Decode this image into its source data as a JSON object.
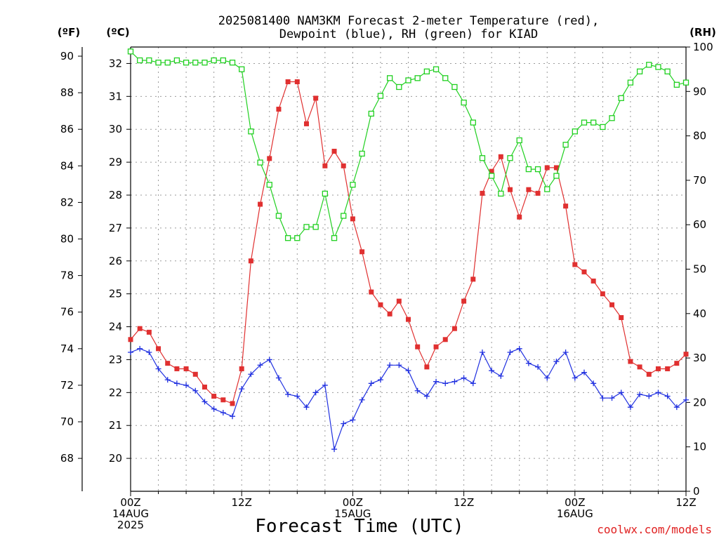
{
  "chart_data": {
    "type": "line",
    "title_lines": [
      "2025081400 NAM3KM Forecast 2-meter Temperature (red),",
      "Dewpoint (blue), RH (green) for KIAD"
    ],
    "xlabel": "Forecast Time (UTC)",
    "credit": "coolwx.com/models",
    "units": {
      "left_f": "(ºF)",
      "left_c": "(ºC)",
      "right": "(RH)"
    },
    "x_ticks": [
      {
        "hour": 0,
        "lines": [
          "00Z",
          "14AUG",
          "2025"
        ]
      },
      {
        "hour": 12,
        "lines": [
          "12Z"
        ]
      },
      {
        "hour": 24,
        "lines": [
          "00Z",
          "15AUG"
        ]
      },
      {
        "hour": 36,
        "lines": [
          "12Z"
        ]
      },
      {
        "hour": 48,
        "lines": [
          "00Z",
          "16AUG"
        ]
      },
      {
        "hour": 60,
        "lines": [
          "12Z"
        ]
      }
    ],
    "xlim": [
      0,
      60
    ],
    "y_f_ticks": [
      "68",
      "70",
      "72",
      "74",
      "76",
      "78",
      "80",
      "82",
      "84",
      "86",
      "88",
      "90"
    ],
    "y_c_ticks": [
      "20",
      "21",
      "22",
      "23",
      "24",
      "25",
      "26",
      "27",
      "28",
      "29",
      "30",
      "31",
      "32"
    ],
    "y_rh_ticks": [
      "0",
      "10",
      "20",
      "30",
      "40",
      "50",
      "60",
      "70",
      "80",
      "90",
      "100"
    ],
    "ylim_f": [
      66.2,
      90.5
    ],
    "ylim_rh": [
      0,
      100
    ],
    "hours": [
      0,
      1,
      2,
      3,
      4,
      5,
      6,
      7,
      8,
      9,
      10,
      11,
      12,
      13,
      14,
      15,
      16,
      17,
      18,
      19,
      20,
      21,
      22,
      23,
      24,
      25,
      26,
      27,
      28,
      29,
      30,
      31,
      32,
      33,
      34,
      35,
      36,
      37,
      38,
      39,
      40,
      41,
      42,
      43,
      44,
      45,
      46,
      47,
      48,
      49,
      50,
      51,
      52,
      53,
      54,
      55,
      56,
      57,
      58,
      59,
      60
    ],
    "series": [
      {
        "name": "Temperature",
        "unit": "F",
        "color": "#e03030",
        "marker": "filled-square",
        "values": [
          74.5,
          75.1,
          74.9,
          74.0,
          73.2,
          72.9,
          72.9,
          72.6,
          71.9,
          71.4,
          71.2,
          71.0,
          72.9,
          78.8,
          81.9,
          84.4,
          87.1,
          88.6,
          88.6,
          86.3,
          87.7,
          84.0,
          84.8,
          84.0,
          81.1,
          79.3,
          77.1,
          76.4,
          75.9,
          76.6,
          75.6,
          74.1,
          73.0,
          74.1,
          74.5,
          75.1,
          76.6,
          77.8,
          82.5,
          83.7,
          84.5,
          82.7,
          81.2,
          82.7,
          82.5,
          83.9,
          83.9,
          81.8,
          78.6,
          78.2,
          77.7,
          77.0,
          76.4,
          75.7,
          73.3,
          73.0,
          72.6,
          72.9,
          72.9,
          73.2,
          73.7
        ]
      },
      {
        "name": "Dewpoint",
        "unit": "F",
        "color": "#2030e0",
        "marker": "plus",
        "values": [
          73.8,
          74.0,
          73.8,
          72.9,
          72.3,
          72.1,
          72.0,
          71.7,
          71.1,
          70.7,
          70.5,
          70.3,
          71.8,
          72.6,
          73.1,
          73.4,
          72.4,
          71.5,
          71.4,
          70.8,
          71.6,
          72.0,
          68.5,
          69.9,
          70.1,
          71.2,
          72.1,
          72.3,
          73.1,
          73.1,
          72.8,
          71.7,
          71.4,
          72.2,
          72.1,
          72.2,
          72.4,
          72.1,
          73.8,
          72.8,
          72.5,
          73.8,
          74.0,
          73.2,
          73.0,
          72.4,
          73.3,
          73.8,
          72.4,
          72.7,
          72.1,
          71.3,
          71.3,
          71.6,
          70.8,
          71.5,
          71.4,
          71.6,
          71.4,
          70.8,
          71.2
        ]
      },
      {
        "name": "RH",
        "unit": "%",
        "color": "#20d020",
        "marker": "open-square",
        "values": [
          99,
          97,
          97,
          96.5,
          96.5,
          97,
          96.5,
          96.5,
          96.5,
          97,
          97,
          96.5,
          95,
          81,
          74,
          69,
          62,
          57,
          57,
          59.5,
          59.5,
          67,
          57,
          62,
          69,
          76,
          85,
          89,
          93,
          91,
          92.5,
          93,
          94.5,
          95,
          93,
          91,
          87.5,
          83,
          75,
          71,
          67,
          75,
          79,
          72.5,
          72.5,
          68,
          71,
          78,
          81,
          83,
          83,
          82,
          84,
          88.5,
          92,
          94.5,
          96,
          95.5,
          94.5,
          91.5,
          92
        ]
      }
    ]
  }
}
